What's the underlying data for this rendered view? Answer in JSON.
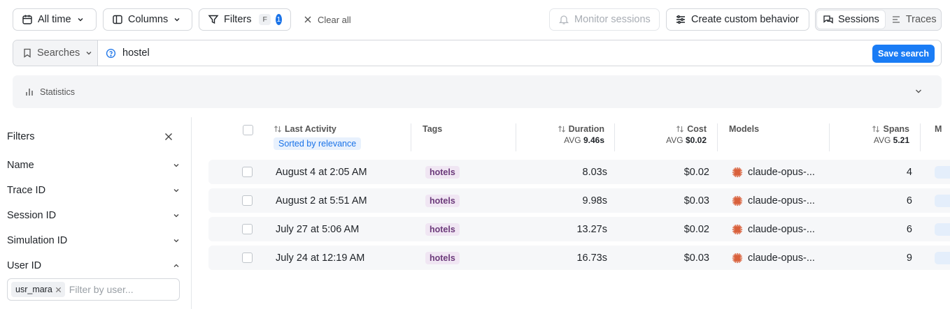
{
  "toolbar": {
    "time_range": "All time",
    "columns": "Columns",
    "filters": "Filters",
    "filters_shortcut": "F",
    "filters_count": "1",
    "clear_all": "Clear all",
    "monitor_sessions": "Monitor sessions",
    "create_behavior": "Create custom behavior",
    "view_toggle": {
      "sessions": "Sessions",
      "traces": "Traces",
      "active": "Sessions"
    }
  },
  "search": {
    "saved_searches_label": "Searches",
    "query": "hostel",
    "save_label": "Save search"
  },
  "statistics": {
    "label": "Statistics"
  },
  "filters_panel": {
    "title": "Filters",
    "items": [
      {
        "label": "Name",
        "expanded": false
      },
      {
        "label": "Trace ID",
        "expanded": false
      },
      {
        "label": "Session ID",
        "expanded": false
      },
      {
        "label": "Simulation ID",
        "expanded": false
      },
      {
        "label": "User ID",
        "expanded": true
      }
    ],
    "user_id": {
      "chip": "usr_mara",
      "placeholder": "Filter by user..."
    }
  },
  "table": {
    "columns": {
      "last_activity": {
        "label": "Last Activity",
        "badge": "Sorted by relevance"
      },
      "tags": {
        "label": "Tags"
      },
      "duration": {
        "label": "Duration",
        "avg_prefix": "AVG",
        "avg_value": "9.46s"
      },
      "cost": {
        "label": "Cost",
        "avg_prefix": "AVG",
        "avg_value": "$0.02"
      },
      "models": {
        "label": "Models"
      },
      "spans": {
        "label": "Spans",
        "avg_prefix": "AVG",
        "avg_value": "5.21"
      },
      "next_partial": "M"
    },
    "rows": [
      {
        "last_activity": "August 4 at 2:05 AM",
        "tag": "hotels",
        "duration": "8.03s",
        "cost": "$0.02",
        "model": "claude-opus-...",
        "spans": "4"
      },
      {
        "last_activity": "August 2 at 5:51 AM",
        "tag": "hotels",
        "duration": "9.98s",
        "cost": "$0.03",
        "model": "claude-opus-...",
        "spans": "6"
      },
      {
        "last_activity": "July 27 at 5:06 AM",
        "tag": "hotels",
        "duration": "13.27s",
        "cost": "$0.02",
        "model": "claude-opus-...",
        "spans": "6"
      },
      {
        "last_activity": "July 24 at 12:19 AM",
        "tag": "hotels",
        "duration": "16.73s",
        "cost": "$0.03",
        "model": "claude-opus-...",
        "spans": "9"
      }
    ]
  },
  "colors": {
    "accent": "#1a7cf5",
    "tag_bg": "#f0e6f3",
    "tag_text": "#6b3a7a",
    "model_icon": "#d9603b"
  },
  "icons": [
    "calendar-icon",
    "columns-icon",
    "filter-icon",
    "close-icon",
    "bell-icon",
    "sliders-icon",
    "chat-icon",
    "list-icon",
    "bookmark-icon",
    "help-circle-icon",
    "bar-chart-icon",
    "chevron-down-icon",
    "chevron-up-icon",
    "sort-icon",
    "model-burst-icon"
  ]
}
